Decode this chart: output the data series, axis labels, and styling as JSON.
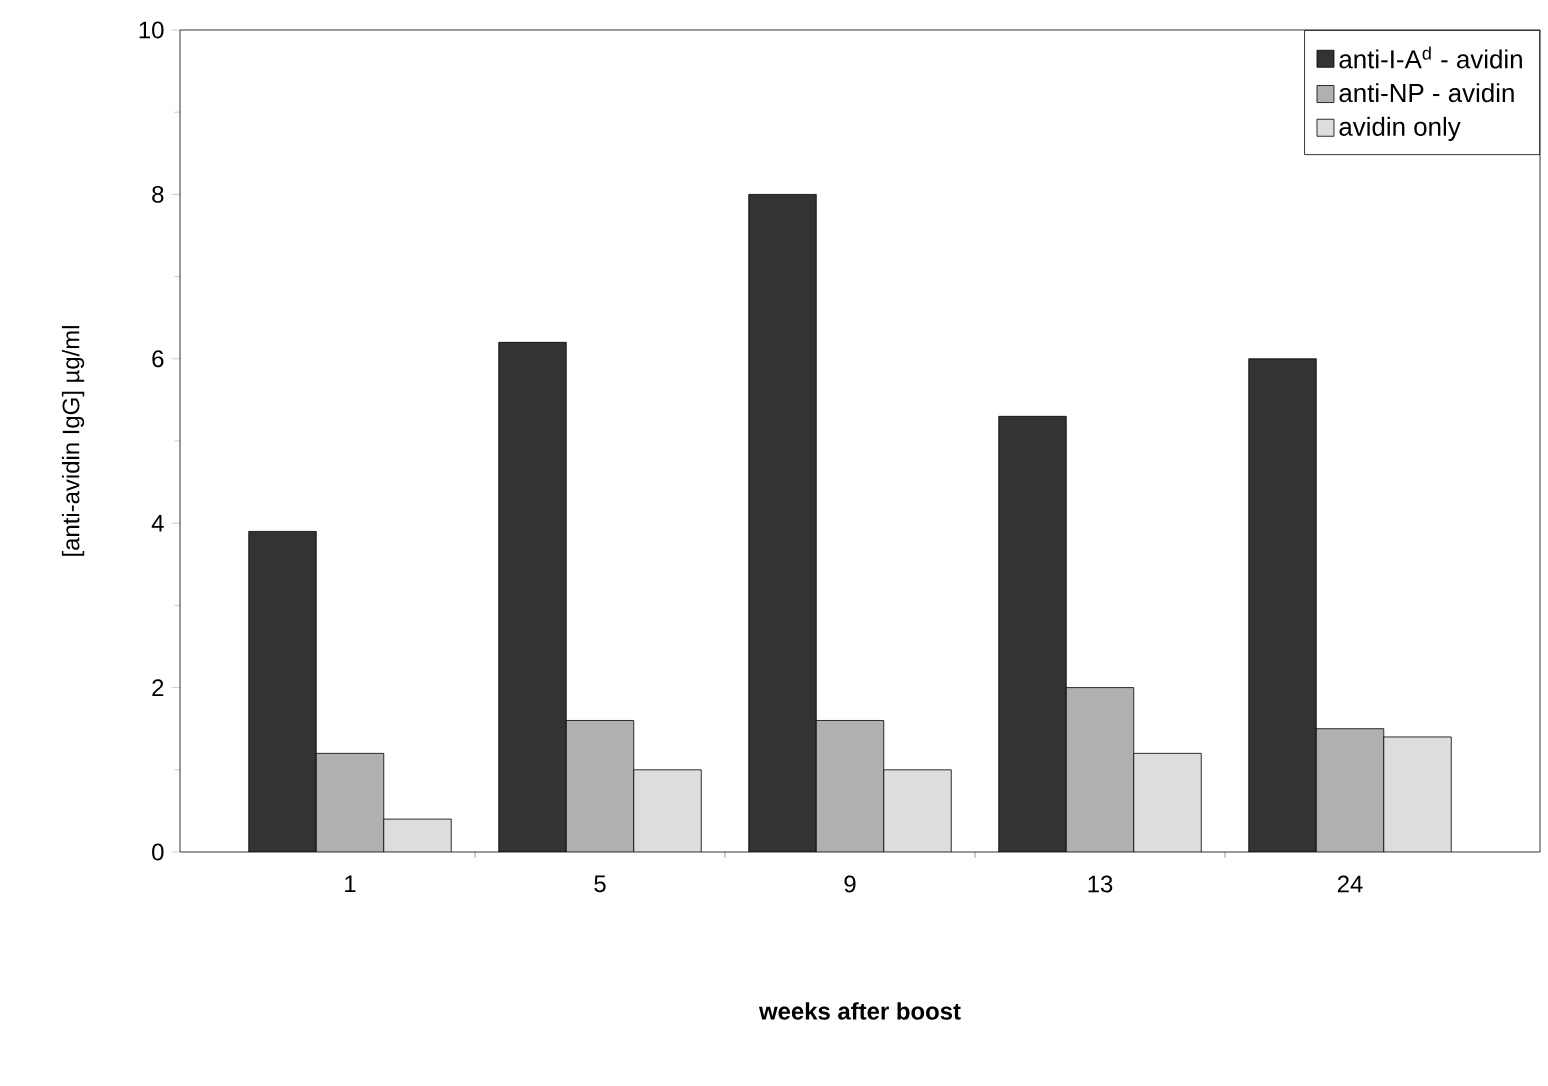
{
  "chart_data": {
    "type": "bar",
    "xlabel": "weeks after boost",
    "ylabel": "[anti-avidin IgG] µg/ml",
    "categories": [
      "1",
      "5",
      "9",
      "13",
      "24"
    ],
    "series": [
      {
        "name": "anti-I-A$^{d}$ - avidin",
        "color": "#333333",
        "values": [
          3.9,
          6.2,
          8.0,
          5.3,
          6.0
        ]
      },
      {
        "name": "anti-NP - avidin",
        "color": "#b0b0b0",
        "values": [
          1.2,
          1.6,
          1.6,
          2.0,
          1.5
        ]
      },
      {
        "name": "avidin only",
        "color": "#dddddd",
        "values": [
          0.4,
          1.0,
          1.0,
          1.2,
          1.4
        ]
      }
    ],
    "ylim": [
      0,
      10
    ],
    "yticks": [
      0,
      2,
      4,
      6,
      8,
      10
    ],
    "legend": "top right"
  }
}
